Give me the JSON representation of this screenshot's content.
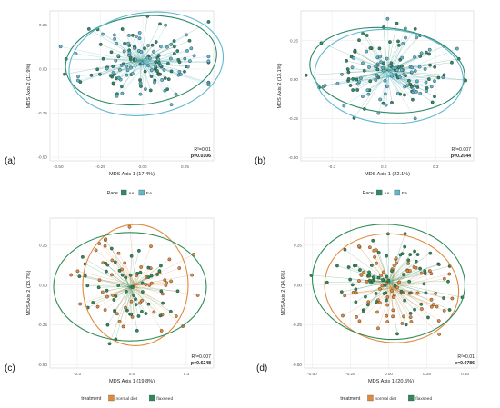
{
  "panels": [
    {
      "letter": "(a)",
      "xlabel": "MDS Axis 1 (17.4%)",
      "ylabel": "MDS Axis 2 (11.9%)",
      "xlim": [
        -0.55,
        0.42
      ],
      "ylim": [
        -0.52,
        0.33
      ],
      "xticks": [
        -0.5,
        -0.25,
        0.0,
        0.25
      ],
      "xtick_labels": [
        "-0.50",
        "-0.25",
        "0.00",
        "0.25"
      ],
      "yticks": [
        -0.5,
        -0.25,
        0.0,
        0.25
      ],
      "ytick_labels": [
        "-0.50",
        "-0.25",
        "0.00",
        "0.25"
      ],
      "stats": [
        "R²=0.01",
        "p=0.0106"
      ],
      "legend_title": "Race",
      "groups": [
        {
          "name": "AA",
          "color": "#2e8b6a",
          "centroid": [
            -0.01,
            0.05
          ],
          "ellipse": {
            "rx": 0.45,
            "ry": 0.25,
            "angle": -7
          }
        },
        {
          "name": "EA",
          "color": "#5fb8cf",
          "centroid": [
            0.02,
            0.03
          ],
          "ellipse": {
            "rx": 0.46,
            "ry": 0.29,
            "angle": -9
          }
        }
      ],
      "seed": 11,
      "n_points": 150,
      "spread": [
        0.18,
        0.11
      ]
    },
    {
      "letter": "(b)",
      "xlabel": "MDS Axis 1 (22.1%)",
      "ylabel": "MDS Axis 2 (13.1%)",
      "xlim": [
        -0.48,
        0.52
      ],
      "ylim": [
        -0.52,
        0.44
      ],
      "xticks": [
        -0.3,
        0.0,
        0.3
      ],
      "xtick_labels": [
        "-0.3",
        "0.0",
        "0.3"
      ],
      "yticks": [
        -0.5,
        -0.25,
        0.0,
        0.25
      ],
      "ytick_labels": [
        "-0.50",
        "-0.25",
        "0.00",
        "0.25"
      ],
      "stats": [
        "R²=0.007",
        "p=0.2044"
      ],
      "legend_title": "Race",
      "groups": [
        {
          "name": "AA",
          "color": "#2e8b6a",
          "centroid": [
            0.02,
            0.06
          ],
          "ellipse": {
            "rx": 0.45,
            "ry": 0.27,
            "angle": 6
          }
        },
        {
          "name": "EA",
          "color": "#5fb8cf",
          "centroid": [
            0.03,
            0.02
          ],
          "ellipse": {
            "rx": 0.43,
            "ry": 0.3,
            "angle": 4
          }
        }
      ],
      "seed": 23,
      "n_points": 150,
      "spread": [
        0.18,
        0.12
      ]
    },
    {
      "letter": "(c)",
      "xlabel": "MDS Axis 1 (19.8%)",
      "ylabel": "MDS Axis 2 (13.7%)",
      "xlim": [
        -0.45,
        0.45
      ],
      "ylim": [
        -0.52,
        0.42
      ],
      "xticks": [
        -0.3,
        0.0,
        0.3
      ],
      "xtick_labels": [
        "-0.3",
        "0.0",
        "0.3"
      ],
      "yticks": [
        -0.5,
        -0.25,
        0.0,
        0.25
      ],
      "ytick_labels": [
        "-0.50",
        "-0.25",
        "0.00",
        "0.25"
      ],
      "stats": [
        "R²=0.007",
        "p=0.6248"
      ],
      "legend_title": "treatment",
      "groups": [
        {
          "name": "normal diet",
          "color": "#e08a3c",
          "centroid": [
            0.02,
            0.0
          ],
          "ellipse": {
            "rx": 0.29,
            "ry": 0.38,
            "angle": 0
          }
        },
        {
          "name": "flaxseed",
          "color": "#2e8b57",
          "centroid": [
            -0.01,
            -0.01
          ],
          "ellipse": {
            "rx": 0.42,
            "ry": 0.34,
            "angle": 0
          }
        }
      ],
      "seed": 37,
      "n_points": 110,
      "spread": [
        0.15,
        0.15
      ]
    },
    {
      "letter": "(d)",
      "xlabel": "MDS Axis 1 (20.5%)",
      "ylabel": "MDS Axis 2 (14.6%)",
      "xlim": [
        -0.55,
        0.58
      ],
      "ylim": [
        -0.52,
        0.42
      ],
      "xticks": [
        -0.5,
        -0.25,
        0.0,
        0.25,
        0.5
      ],
      "xtick_labels": [
        "-0.50",
        "-0.25",
        "0.00",
        "0.25",
        "0.50"
      ],
      "yticks": [
        -0.5,
        -0.25,
        0.0,
        0.25
      ],
      "ytick_labels": [
        "-0.50",
        "-0.25",
        "0.00",
        "0.25"
      ],
      "stats": [
        "R²=0.01",
        "p=0.0786"
      ],
      "legend_title": "treatment",
      "groups": [
        {
          "name": "normal diet",
          "color": "#e08a3c",
          "centroid": [
            0.02,
            -0.02
          ],
          "ellipse": {
            "rx": 0.44,
            "ry": 0.34,
            "angle": 8
          }
        },
        {
          "name": "flaxseed",
          "color": "#2e8b57",
          "centroid": [
            0.0,
            0.02
          ],
          "ellipse": {
            "rx": 0.5,
            "ry": 0.36,
            "angle": 5
          }
        }
      ],
      "seed": 51,
      "n_points": 150,
      "spread": [
        0.2,
        0.14
      ]
    }
  ],
  "chart_data": [
    {
      "type": "scatter",
      "panel": "(a)",
      "xlabel": "MDS Axis 1 (17.4%)",
      "ylabel": "MDS Axis 2 (11.9%)",
      "xlim": [
        -0.55,
        0.42
      ],
      "ylim": [
        -0.52,
        0.33
      ],
      "legend_title": "Race",
      "series": [
        {
          "name": "AA"
        },
        {
          "name": "EA"
        }
      ],
      "annotations": [
        "R²=0.01",
        "p=0.0106"
      ]
    },
    {
      "type": "scatter",
      "panel": "(b)",
      "xlabel": "MDS Axis 1 (22.1%)",
      "ylabel": "MDS Axis 2 (13.1%)",
      "xlim": [
        -0.48,
        0.52
      ],
      "ylim": [
        -0.52,
        0.44
      ],
      "legend_title": "Race",
      "series": [
        {
          "name": "AA"
        },
        {
          "name": "EA"
        }
      ],
      "annotations": [
        "R²=0.007",
        "p=0.2044"
      ]
    },
    {
      "type": "scatter",
      "panel": "(c)",
      "xlabel": "MDS Axis 1 (19.8%)",
      "ylabel": "MDS Axis 2 (13.7%)",
      "xlim": [
        -0.45,
        0.45
      ],
      "ylim": [
        -0.52,
        0.42
      ],
      "legend_title": "treatment",
      "series": [
        {
          "name": "normal diet"
        },
        {
          "name": "flaxseed"
        }
      ],
      "annotations": [
        "R²=0.007",
        "p=0.6248"
      ]
    },
    {
      "type": "scatter",
      "panel": "(d)",
      "xlabel": "MDS Axis 1 (20.5%)",
      "ylabel": "MDS Axis 2 (14.6%)",
      "xlim": [
        -0.55,
        0.58
      ],
      "ylim": [
        -0.52,
        0.42
      ],
      "legend_title": "treatment",
      "series": [
        {
          "name": "normal diet"
        },
        {
          "name": "flaxseed"
        }
      ],
      "annotations": [
        "R²=0.01",
        "p=0.0786"
      ]
    }
  ]
}
